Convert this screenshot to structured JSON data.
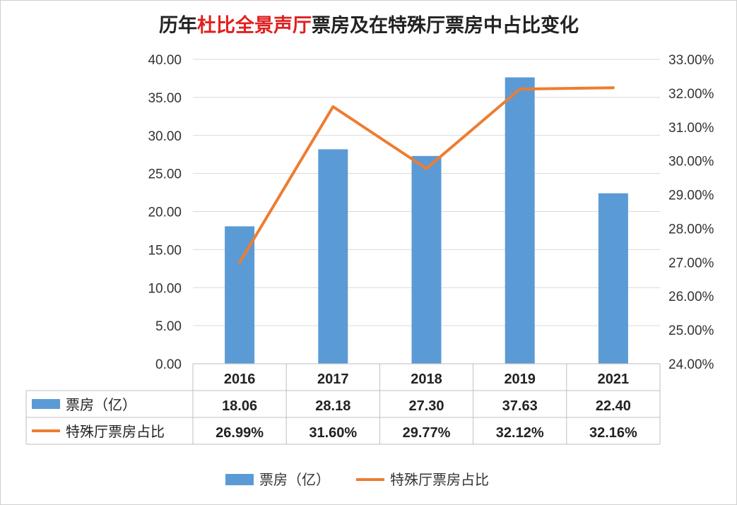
{
  "chart_data": {
    "type": "bar",
    "title_parts": [
      {
        "text": "历年",
        "highlight": false
      },
      {
        "text": "杜比全景声厅",
        "highlight": true
      },
      {
        "text": "票房及在特殊厅票房中占比变化",
        "highlight": false
      }
    ],
    "categories": [
      "2016",
      "2017",
      "2018",
      "2019",
      "2021"
    ],
    "series": [
      {
        "name": "票房（亿）",
        "type": "bar",
        "axis": "left",
        "color": "#5b9bd5",
        "values": [
          18.06,
          28.18,
          27.3,
          37.63,
          22.4
        ],
        "labels": [
          "18.06",
          "28.18",
          "27.30",
          "37.63",
          "22.40"
        ]
      },
      {
        "name": "特殊厅票房占比",
        "type": "line",
        "axis": "right",
        "color": "#ed7d31",
        "values": [
          26.99,
          31.6,
          29.77,
          32.12,
          32.16
        ],
        "labels": [
          "26.99%",
          "31.60%",
          "29.77%",
          "32.12%",
          "32.16%"
        ]
      }
    ],
    "y_left": {
      "ylim": [
        0,
        40
      ],
      "ticks": [
        "0.00",
        "5.00",
        "10.00",
        "15.00",
        "20.00",
        "25.00",
        "30.00",
        "35.00",
        "40.00"
      ]
    },
    "y_right": {
      "ylim": [
        24,
        33
      ],
      "ticks": [
        "24.00%",
        "25.00%",
        "26.00%",
        "27.00%",
        "28.00%",
        "29.00%",
        "30.00%",
        "31.00%",
        "32.00%",
        "33.00%"
      ]
    },
    "grid": true,
    "data_table": true,
    "legend": "bottom-center"
  }
}
